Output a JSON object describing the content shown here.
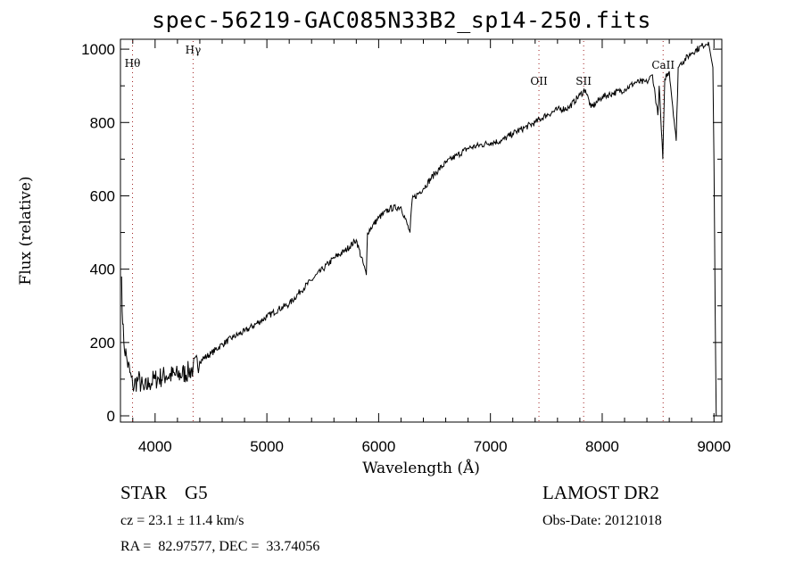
{
  "chart_data": {
    "type": "line",
    "title": "spec-56219-GAC085N33B2_sp14-250.fits",
    "xlabel": "Wavelength (Å)",
    "ylabel": "Flux (relative)",
    "xlim": [
      3690,
      9070
    ],
    "ylim": [
      -17,
      1027
    ],
    "xticks": [
      4000,
      5000,
      6000,
      7000,
      8000,
      9000
    ],
    "xtick_labels": [
      "4000",
      "5000",
      "6000",
      "7000",
      "8000",
      "9000"
    ],
    "yticks": [
      0,
      200,
      400,
      600,
      800,
      1000
    ],
    "ytick_labels": [
      "0",
      "200",
      "400",
      "600",
      "800",
      "1000"
    ],
    "grid": false,
    "lines": [
      {
        "label": "Hθ",
        "wavelength": 3798
      },
      {
        "label": "Hγ",
        "wavelength": 4340
      },
      {
        "label": "OII",
        "wavelength": 7434
      },
      {
        "label": "SII",
        "wavelength": 7834
      },
      {
        "label": "CaII",
        "wavelength": 8545
      }
    ],
    "line_color": "#a02020",
    "series": [
      {
        "name": "spectrum",
        "x": [
          3700,
          3710,
          3720,
          3750,
          3800,
          3850,
          3900,
          3950,
          4000,
          4100,
          4200,
          4300,
          4340,
          4400,
          4500,
          4600,
          4700,
          4800,
          5000,
          5100,
          5200,
          5300,
          5400,
          5500,
          5600,
          5700,
          5800,
          5890,
          5900,
          6000,
          6100,
          6200,
          6280,
          6300,
          6400,
          6500,
          6600,
          6700,
          6800,
          7000,
          7100,
          7200,
          7300,
          7400,
          7500,
          7600,
          7700,
          7800,
          7850,
          7900,
          8000,
          8100,
          8200,
          8300,
          8400,
          8450,
          8498,
          8510,
          8542,
          8560,
          8600,
          8662,
          8680,
          8700,
          8800,
          8900,
          8950,
          8990,
          9000,
          9010,
          9020
        ],
        "y": [
          380,
          250,
          200,
          150,
          80,
          100,
          70,
          90,
          100,
          110,
          110,
          120,
          130,
          150,
          170,
          195,
          215,
          230,
          270,
          290,
          305,
          340,
          370,
          400,
          430,
          450,
          480,
          384,
          500,
          540,
          565,
          570,
          500,
          590,
          620,
          660,
          690,
          710,
          730,
          745,
          750,
          770,
          785,
          800,
          820,
          835,
          840,
          875,
          890,
          840,
          870,
          880,
          890,
          910,
          910,
          930,
          820,
          900,
          700,
          920,
          940,
          750,
          950,
          960,
          990,
          1010,
          1020,
          950,
          700,
          300,
          0
        ]
      }
    ]
  },
  "info": {
    "class": "STAR",
    "subclass": "G5",
    "survey": "LAMOST DR2",
    "cz": "cz = 23.1 ± 11.4 km/s",
    "obs_date": "Obs-Date: 20121018",
    "coords": "RA =  82.97577, DEC =  33.74056"
  }
}
